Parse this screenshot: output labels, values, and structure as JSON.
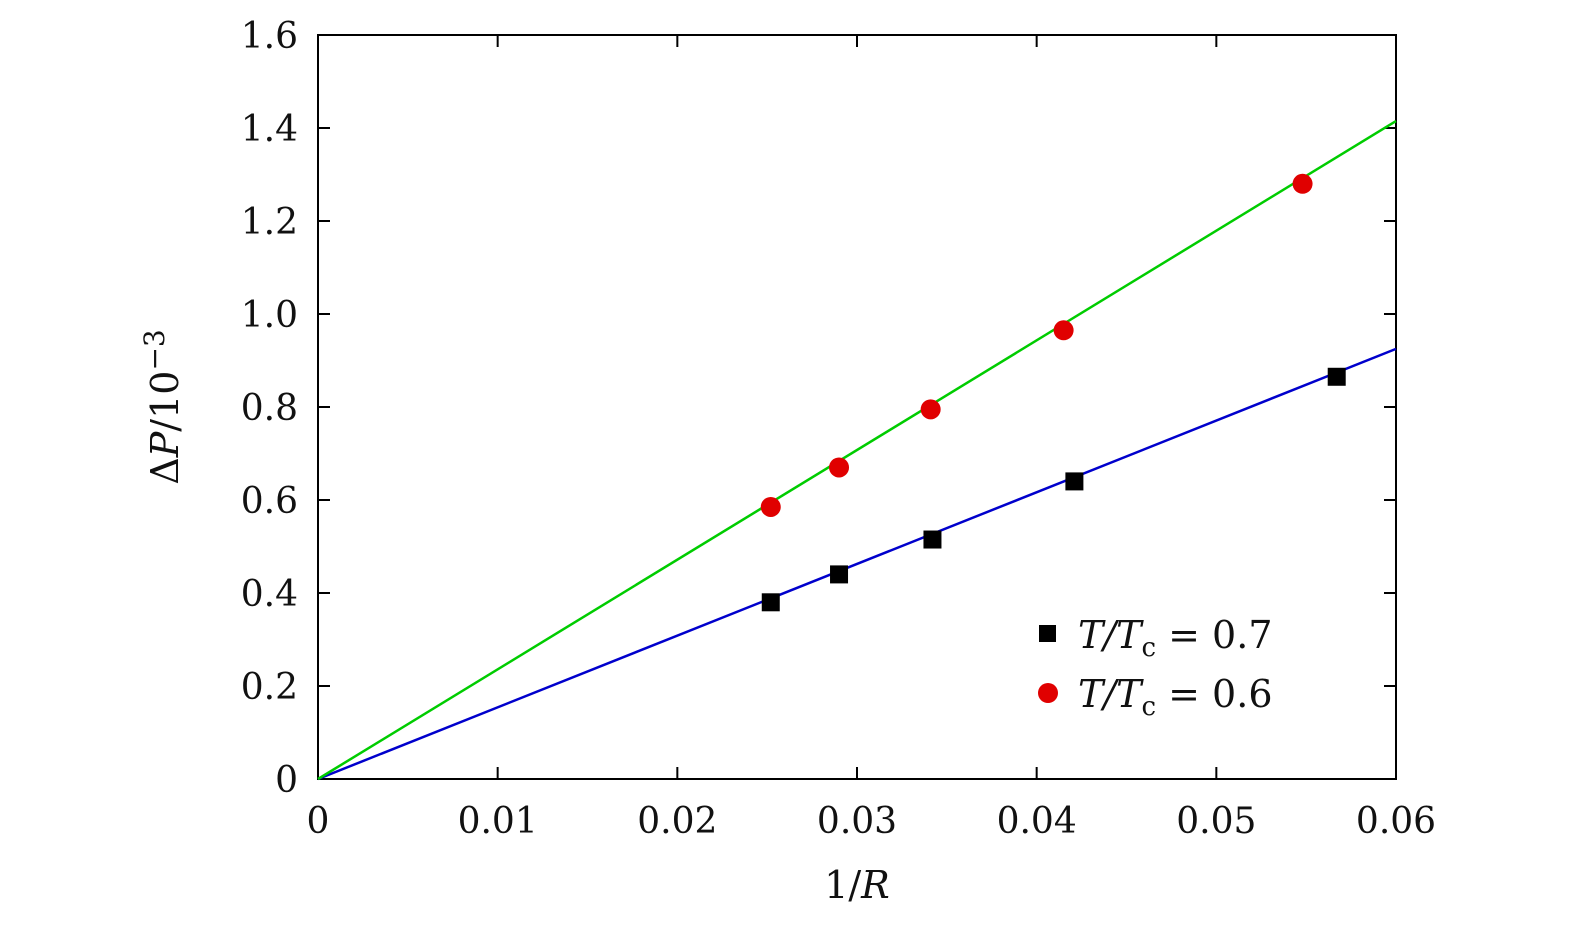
{
  "chart_data": {
    "type": "scatter",
    "xlabel": "1/R",
    "ylabel": "ΔP/10−3",
    "xlim": [
      0,
      0.06
    ],
    "ylim": [
      0,
      1.6
    ],
    "x_ticks": [
      "0",
      "0.01",
      "0.02",
      "0.03",
      "0.04",
      "0.05",
      "0.06"
    ],
    "y_ticks": [
      "0",
      "0.2",
      "0.4",
      "0.6",
      "0.8",
      "1.0",
      "1.2",
      "1.4",
      "1.6"
    ],
    "grid": false,
    "legend_position": "bottom-right",
    "series": [
      {
        "name": "T/Tc = 0.7",
        "marker": "square",
        "marker_color": "#000000",
        "fit_line_color": "#0000cc",
        "points": [
          {
            "x": 0.0252,
            "y": 0.38
          },
          {
            "x": 0.029,
            "y": 0.44
          },
          {
            "x": 0.0342,
            "y": 0.515
          },
          {
            "x": 0.0421,
            "y": 0.64
          },
          {
            "x": 0.0567,
            "y": 0.865
          }
        ],
        "fit_line": {
          "x": [
            0,
            0.06
          ],
          "y": [
            0,
            0.925
          ]
        }
      },
      {
        "name": "T/Tc = 0.6",
        "marker": "circle",
        "marker_color": "#e00000",
        "fit_line_color": "#00cc00",
        "points": [
          {
            "x": 0.0252,
            "y": 0.585
          },
          {
            "x": 0.029,
            "y": 0.67
          },
          {
            "x": 0.0341,
            "y": 0.795
          },
          {
            "x": 0.0415,
            "y": 0.965
          },
          {
            "x": 0.0548,
            "y": 1.28
          }
        ],
        "fit_line": {
          "x": [
            0,
            0.06
          ],
          "y": [
            0,
            1.415
          ]
        }
      }
    ],
    "legend": [
      {
        "prefix": "T/T",
        "subscript": "c",
        "suffix": " = 0.7"
      },
      {
        "prefix": "T/T",
        "subscript": "c",
        "suffix": " = 0.6"
      }
    ],
    "ylabel_parts": {
      "delta": "Δ",
      "var": "P",
      "rest": "/10",
      "exp": "−3"
    },
    "xlabel_parts": {
      "num": "1/",
      "var": "R"
    }
  }
}
